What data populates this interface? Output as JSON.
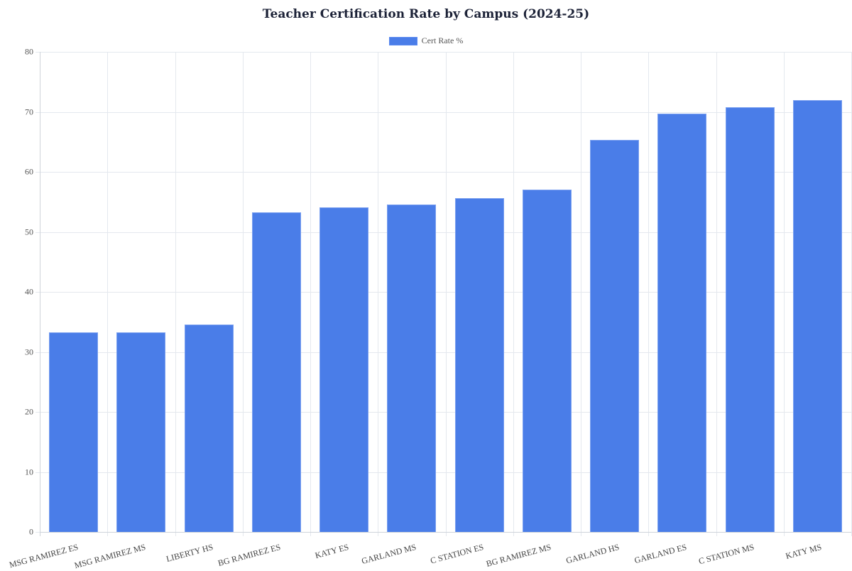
{
  "chart_data": {
    "type": "bar",
    "title": "Teacher Certification Rate by Campus (2024-25)",
    "xlabel": "",
    "ylabel": "",
    "ylim": [
      0,
      80
    ],
    "yticks": [
      0,
      10,
      20,
      30,
      40,
      50,
      60,
      70,
      80
    ],
    "grid": true,
    "legend_position": "top",
    "categories": [
      "MSG RAMIREZ ES",
      "MSG RAMIREZ MS",
      "LIBERTY HS",
      "BG RAMIREZ ES",
      "KATY ES",
      "GARLAND MS",
      "C STATION ES",
      "BG RAMIREZ MS",
      "GARLAND HS",
      "GARLAND ES",
      "C STATION MS",
      "KATY MS"
    ],
    "series": [
      {
        "name": "Cert Rate %",
        "color": "#4a7de8",
        "values": [
          33.3,
          33.3,
          34.5,
          53.3,
          54.1,
          54.5,
          55.6,
          57.1,
          65.3,
          69.7,
          70.8,
          72.0
        ]
      }
    ]
  },
  "legend": {
    "label": "Cert Rate %"
  }
}
